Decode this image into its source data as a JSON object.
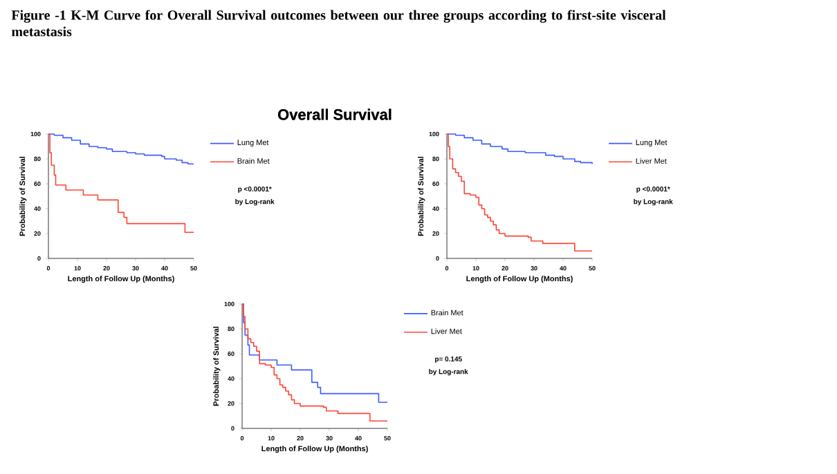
{
  "chart_data": [
    {
      "type": "other",
      "title": "Figure -1 K-M Curve for Overall Survival outcomes between our three groups according to first-site visceral metastasis",
      "subtitle": "Overall Survival"
    },
    {
      "type": "step",
      "xlabel": "Length of Follow Up (Months)",
      "ylabel": "Probability of Survival",
      "xlim": [
        0,
        50
      ],
      "ylim": [
        0,
        100
      ],
      "xticks": [
        0,
        10,
        20,
        30,
        40,
        50
      ],
      "yticks": [
        0,
        20,
        40,
        60,
        80,
        100
      ],
      "legend": "right",
      "annotations": [
        "p <0.0001*",
        "by Log-rank"
      ],
      "series": [
        {
          "name": "Lung Met",
          "color": "#3b5bfd",
          "x": [
            0,
            2,
            5,
            8,
            11,
            14,
            17,
            20,
            22,
            27,
            30,
            33,
            39,
            40,
            44,
            46,
            48,
            50
          ],
          "values": [
            100,
            99,
            97,
            95,
            92,
            90,
            89,
            88,
            86,
            85,
            84,
            83,
            82,
            80,
            79,
            77,
            76,
            76
          ]
        },
        {
          "name": "Brain Met",
          "color": "#ff4433",
          "x": [
            0,
            0.5,
            1,
            2,
            2.5,
            6,
            12,
            17,
            24,
            26,
            27,
            47,
            50
          ],
          "values": [
            100,
            85,
            75,
            67,
            59,
            55,
            51,
            47,
            37,
            33,
            28,
            21,
            21
          ]
        }
      ]
    },
    {
      "type": "step",
      "xlabel": "Length of Follow Up (Months)",
      "ylabel": "Probability of Survival",
      "xlim": [
        0,
        50
      ],
      "ylim": [
        0,
        100
      ],
      "xticks": [
        0,
        10,
        20,
        30,
        40,
        50
      ],
      "yticks": [
        0,
        20,
        40,
        60,
        80,
        100
      ],
      "legend": "right",
      "annotations": [
        "p <0.0001*",
        "by Log-rank"
      ],
      "series": [
        {
          "name": "Lung Met",
          "color": "#3b5bfd",
          "x": [
            0,
            3,
            6,
            9,
            12,
            15,
            19,
            21,
            27,
            34,
            37,
            40,
            44,
            46,
            50
          ],
          "values": [
            100,
            99,
            97,
            95,
            92,
            90,
            88,
            86,
            85,
            83,
            82,
            80,
            78,
            77,
            76
          ]
        },
        {
          "name": "Liver Met",
          "color": "#ff4433",
          "x": [
            0,
            0.5,
            1,
            2,
            3,
            4,
            5,
            6,
            8,
            10,
            11,
            12,
            13,
            14,
            15,
            16,
            17,
            18,
            20,
            28,
            29,
            33,
            44,
            50
          ],
          "values": [
            100,
            90,
            80,
            72,
            69,
            66,
            62,
            52,
            51,
            49,
            43,
            40,
            35,
            33,
            30,
            27,
            23,
            20,
            18,
            17,
            14,
            12,
            6,
            6
          ]
        }
      ]
    },
    {
      "type": "step",
      "xlabel": "Length of Follow Up (Months)",
      "ylabel": "Probability of Survival",
      "xlim": [
        0,
        50
      ],
      "ylim": [
        0,
        100
      ],
      "xticks": [
        0,
        10,
        20,
        30,
        40,
        50
      ],
      "yticks": [
        0,
        20,
        40,
        60,
        80,
        100
      ],
      "legend": "right",
      "annotations": [
        "p= 0.145",
        "by Log-rank"
      ],
      "series": [
        {
          "name": "Brain Met",
          "color": "#3b5bfd",
          "x": [
            0,
            0.5,
            1,
            2,
            2.5,
            6,
            12,
            17,
            24,
            26,
            27,
            47,
            50
          ],
          "values": [
            100,
            85,
            75,
            67,
            59,
            55,
            51,
            47,
            37,
            33,
            28,
            21,
            21
          ]
        },
        {
          "name": "Liver Met",
          "color": "#ff4433",
          "x": [
            0,
            0.5,
            1,
            2,
            3,
            4,
            5,
            6,
            8,
            10,
            11,
            12,
            13,
            14,
            15,
            16,
            17,
            18,
            20,
            28,
            29,
            33,
            44,
            50
          ],
          "values": [
            100,
            90,
            80,
            72,
            69,
            66,
            62,
            52,
            51,
            49,
            43,
            40,
            35,
            33,
            30,
            27,
            23,
            20,
            18,
            17,
            14,
            12,
            6,
            6
          ]
        }
      ]
    }
  ]
}
